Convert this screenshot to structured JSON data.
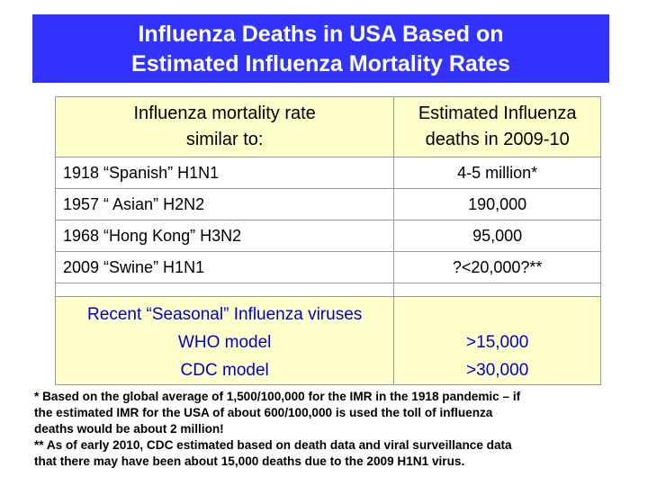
{
  "title": {
    "line1": "Influenza Deaths in USA Based on",
    "line2": "Estimated Influenza Mortality Rates"
  },
  "table": {
    "header": {
      "col1_line1": "Influenza mortality rate",
      "col1_line2": "similar to:",
      "col2_line1": "Estimated Influenza",
      "col2_line2": "deaths in 2009-10"
    },
    "rows": [
      {
        "rate": "1918 “Spanish” H1N1",
        "deaths": "4-5 million*"
      },
      {
        "rate": "1957 “ Asian” H2N2",
        "deaths": "190,000"
      },
      {
        "rate": "1968 “Hong Kong” H3N2",
        "deaths": "95,000"
      },
      {
        "rate": "2009 “Swine” H1N1",
        "deaths": "?<20,000?**"
      }
    ],
    "seasonal": {
      "heading": "Recent “Seasonal” Influenza viruses",
      "who_label": "WHO model",
      "cdc_label": "CDC model",
      "who_value": ">15,000",
      "cdc_value": ">30,000"
    }
  },
  "footnotes": {
    "line1": "* Based on the global average of 1,500/100,000 for the IMR in the 1918 pandemic – if",
    "line2": "the estimated IMR for the USA of about 600/100,000 is used the toll of influenza",
    "line3": "deaths would be about 2 million!",
    "line4": "** As of early 2010, CDC estimated based on death data and viral surveillance data",
    "line5": "that there may have been about 15,000 deaths due to the 2009 H1N1 virus."
  }
}
